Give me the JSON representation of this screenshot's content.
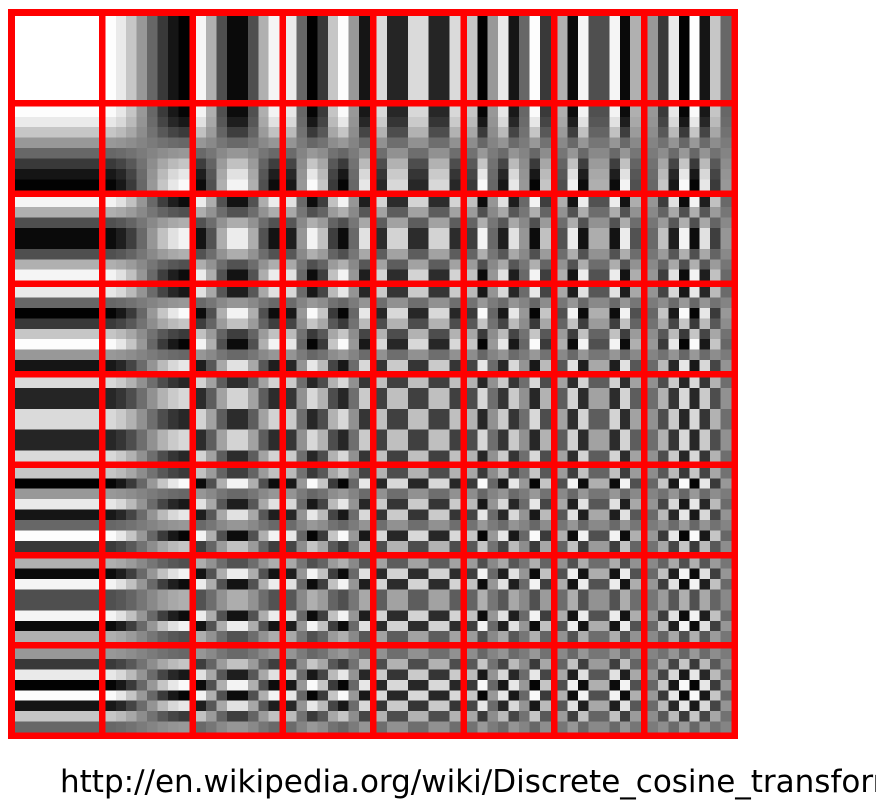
{
  "figure": {
    "kind": "dct-2d-basis-functions",
    "grid_rows": 8,
    "grid_cols": 8,
    "block_size": 8,
    "border_color": "#ff0000",
    "pixel_color_low": "#000000",
    "pixel_color_high": "#ffffff"
  },
  "caption": {
    "url_text": "http://en.wikipedia.org/wiki/Discrete_cosine_transform"
  }
}
